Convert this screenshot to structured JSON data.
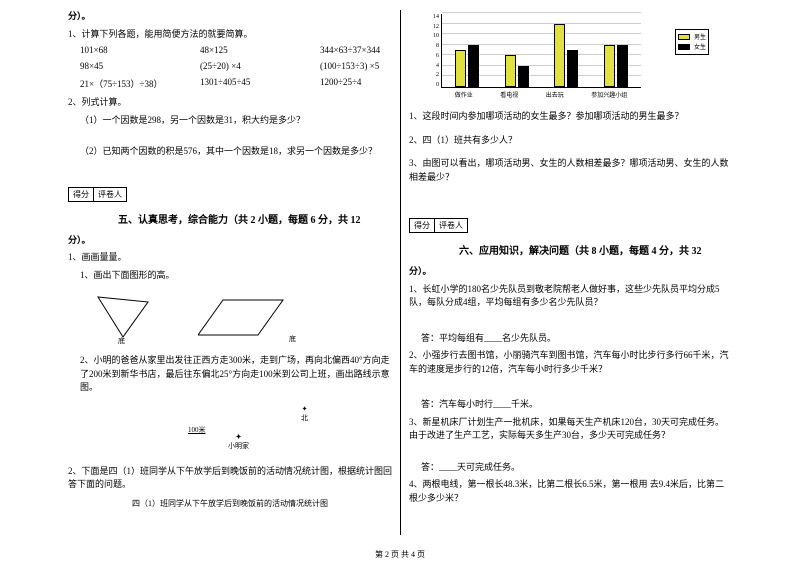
{
  "left": {
    "points_end": "分）。",
    "q1": "1、计算下列各题，能用简便方法的就要简算。",
    "calc": [
      [
        "101×68",
        "48×125",
        "344×63÷37×344"
      ],
      [
        "98×45",
        "(25÷20) ×4",
        "(100÷153÷3) ×5"
      ],
      [
        "21×（75÷153）÷38）",
        "1301÷405÷45",
        "1200÷25÷4"
      ]
    ],
    "q2": "2、列式计算。",
    "q2a": "（1）一个因数是298，另一个因数是31，积大约是多少？",
    "q2b": "（2）已知两个因数的积是576，其中一个因数是18，求另一个因数是多少？",
    "score1": "得分",
    "score2": "评卷人",
    "sec5": "五、认真思考，综合能力（共 2 小题，每题 6 分，共 12",
    "sec5end": "分）。",
    "q5_1": "1、画画量量。",
    "q5_1a": "1、画出下面图形的高。",
    "tri_label": "底",
    "para_label": "底",
    "q5_1b": "2、小明的爸爸从家里出发往正西方走300米，走到广场，再向北偏西40°方向走了200米到新华书店，最后往东偏北25°方向走100米到公司上班，画出路线示意图。",
    "north": "北",
    "home": "小明家",
    "scale": "100米",
    "q5_2": "2、下面是四（1）班同学从下午放学后到晚饭前的活动情况统计图，根据统计图回答下面的问题。",
    "stat_caption": "四（1）班同学从下午放学后到晚饭前的活动情况统计图"
  },
  "right": {
    "chart": {
      "ylabels": [
        "14",
        "12",
        "10",
        "8",
        "6",
        "4",
        "2",
        "0"
      ],
      "categories": [
        "做作业",
        "看电视",
        "出去玩",
        "参加兴趣小组"
      ],
      "boys": [
        7,
        6,
        12,
        8
      ],
      "girls": [
        8,
        4,
        7,
        8
      ],
      "max": 14,
      "legend_boy": "男生",
      "legend_girl": "女生"
    },
    "cq1": "1、这段时间内参加哪项活动的女生最多？参加哪项活动的男生最多？",
    "cq2": "2、四（1）班共有多少人？",
    "cq3": "3、由图可以看出，哪项活动男、女生的人数相差最多？哪项活动男、女生的人数相差最少？",
    "score1": "得分",
    "score2": "评卷人",
    "sec6": "六、应用知识，解决问题（共 8 小题，每题 4 分，共 32",
    "sec6end": "分）。",
    "q6_1": "1、长虹小学的180名少先队员到敬老院帮老人做好事，这些少先队员平均分成5队，每队分成4组，平均每组有多少名少先队员？",
    "a6_1": "答：平均每组有____名少先队员。",
    "q6_2": "2、小强步行去图书馆，小丽骑汽车到图书馆，汽车每小时比步行多行66千米，汽车的速度是步行的12倍，汽车每小时行多少千米？",
    "a6_2": "答：汽车每小时行____千米。",
    "q6_3": "3、新星机床厂计划生产一批机床，如果每天生产机床120台，30天可完成任务。由于改进了生产工艺，实际每天多生产30台，多少天可完成任务？",
    "a6_3": "答：____天可完成任务。",
    "q6_4": "4、两根电线，第一根长48.3米，比第二根长6.5米，第一根用 去9.4米后，比第二根少多少米？"
  },
  "footer": "第 2 页 共 4 页"
}
